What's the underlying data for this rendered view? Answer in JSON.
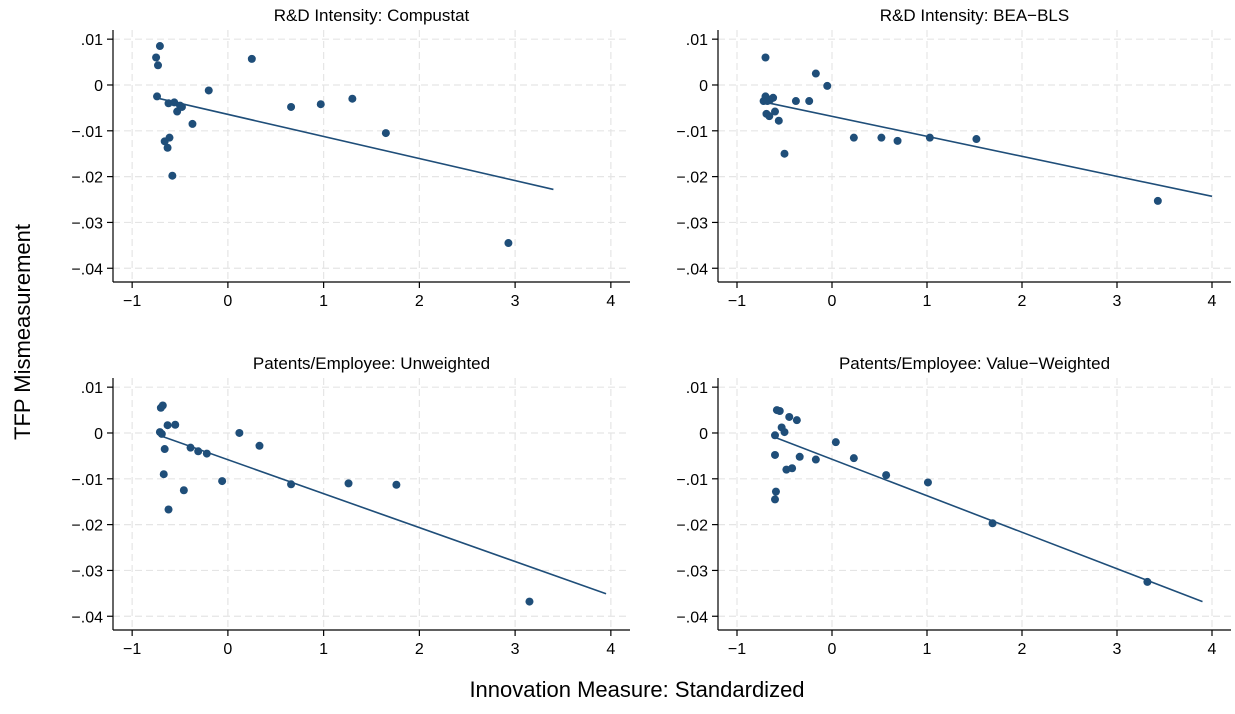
{
  "figure": {
    "ylabel": "TFP Mismeasurement",
    "xlabel": "Innovation Measure: Standardized"
  },
  "style": {
    "point_color": "#1f4e79",
    "line_color": "#1f4e79",
    "grid_color": "#e5e5e5",
    "axis_color": "#000000"
  },
  "chart_data": [
    {
      "type": "scatter",
      "title": "R&D Intensity: Compustat",
      "xlim": [
        -1.2,
        4.2
      ],
      "ylim": [
        -0.043,
        0.012
      ],
      "xticks": [
        -1,
        0,
        1,
        2,
        3,
        4
      ],
      "xtick_labels": [
        "−1",
        "0",
        "1",
        "2",
        "3",
        "4"
      ],
      "yticks": [
        0.01,
        0,
        -0.01,
        -0.02,
        -0.03,
        -0.04
      ],
      "ytick_labels": [
        ".01",
        "0",
        "−.01",
        "−.02",
        "−.03",
        "−.04"
      ],
      "grid": true,
      "points": [
        {
          "x": -0.75,
          "y": 0.006
        },
        {
          "x": -0.73,
          "y": 0.0043
        },
        {
          "x": -0.71,
          "y": 0.0085
        },
        {
          "x": -0.74,
          "y": -0.0025
        },
        {
          "x": -0.62,
          "y": -0.004
        },
        {
          "x": -0.56,
          "y": -0.0038
        },
        {
          "x": -0.53,
          "y": -0.0058
        },
        {
          "x": -0.5,
          "y": -0.0045
        },
        {
          "x": -0.48,
          "y": -0.0048
        },
        {
          "x": -0.37,
          "y": -0.0085
        },
        {
          "x": -0.2,
          "y": -0.0012
        },
        {
          "x": -0.66,
          "y": -0.0123
        },
        {
          "x": -0.61,
          "y": -0.0115
        },
        {
          "x": -0.63,
          "y": -0.0137
        },
        {
          "x": -0.58,
          "y": -0.0198
        },
        {
          "x": 0.25,
          "y": 0.0057
        },
        {
          "x": 0.66,
          "y": -0.0048
        },
        {
          "x": 0.97,
          "y": -0.0042
        },
        {
          "x": 1.3,
          "y": -0.003
        },
        {
          "x": 1.65,
          "y": -0.0105
        },
        {
          "x": 2.93,
          "y": -0.0345
        }
      ],
      "fit_line": {
        "x": [
          -0.75,
          3.4
        ],
        "y": [
          -0.0028,
          -0.0228
        ]
      }
    },
    {
      "type": "scatter",
      "title": "R&D Intensity: BEA−BLS",
      "xlim": [
        -1.2,
        4.2
      ],
      "ylim": [
        -0.043,
        0.012
      ],
      "xticks": [
        -1,
        0,
        1,
        2,
        3,
        4
      ],
      "xtick_labels": [
        "−1",
        "0",
        "1",
        "2",
        "3",
        "4"
      ],
      "yticks": [
        0.01,
        0,
        -0.01,
        -0.02,
        -0.03,
        -0.04
      ],
      "ytick_labels": [
        ".01",
        "0",
        "−.01",
        "−.02",
        "−.03",
        "−.04"
      ],
      "grid": true,
      "points": [
        {
          "x": -0.7,
          "y": 0.006
        },
        {
          "x": -0.72,
          "y": -0.0035
        },
        {
          "x": -0.7,
          "y": -0.0025
        },
        {
          "x": -0.68,
          "y": -0.0035
        },
        {
          "x": -0.65,
          "y": -0.0032
        },
        {
          "x": -0.62,
          "y": -0.0028
        },
        {
          "x": -0.69,
          "y": -0.0063
        },
        {
          "x": -0.66,
          "y": -0.0068
        },
        {
          "x": -0.6,
          "y": -0.0058
        },
        {
          "x": -0.56,
          "y": -0.0078
        },
        {
          "x": -0.5,
          "y": -0.015
        },
        {
          "x": -0.38,
          "y": -0.0035
        },
        {
          "x": -0.24,
          "y": -0.0035
        },
        {
          "x": -0.17,
          "y": 0.0025
        },
        {
          "x": -0.05,
          "y": -0.0002
        },
        {
          "x": 0.23,
          "y": -0.0115
        },
        {
          "x": 0.52,
          "y": -0.0115
        },
        {
          "x": 0.69,
          "y": -0.0122
        },
        {
          "x": 1.03,
          "y": -0.0115
        },
        {
          "x": 1.52,
          "y": -0.0118
        },
        {
          "x": 3.43,
          "y": -0.0253
        }
      ],
      "fit_line": {
        "x": [
          -0.72,
          4.0
        ],
        "y": [
          -0.0037,
          -0.0243
        ]
      }
    },
    {
      "type": "scatter",
      "title": "Patents/Employee: Unweighted",
      "xlim": [
        -1.2,
        4.2
      ],
      "ylim": [
        -0.043,
        0.012
      ],
      "xticks": [
        -1,
        0,
        1,
        2,
        3,
        4
      ],
      "xtick_labels": [
        "−1",
        "0",
        "1",
        "2",
        "3",
        "4"
      ],
      "yticks": [
        0.01,
        0,
        -0.01,
        -0.02,
        -0.03,
        -0.04
      ],
      "ytick_labels": [
        ".01",
        "0",
        "−.01",
        "−.02",
        "−.03",
        "−.04"
      ],
      "grid": true,
      "points": [
        {
          "x": -0.7,
          "y": 0.0055
        },
        {
          "x": -0.68,
          "y": 0.006
        },
        {
          "x": -0.71,
          "y": 0.0002
        },
        {
          "x": -0.69,
          "y": -0.0002
        },
        {
          "x": -0.63,
          "y": 0.0017
        },
        {
          "x": -0.55,
          "y": 0.0018
        },
        {
          "x": -0.66,
          "y": -0.0035
        },
        {
          "x": -0.67,
          "y": -0.009
        },
        {
          "x": -0.62,
          "y": -0.0167
        },
        {
          "x": -0.46,
          "y": -0.0125
        },
        {
          "x": -0.39,
          "y": -0.0032
        },
        {
          "x": -0.31,
          "y": -0.004
        },
        {
          "x": -0.22,
          "y": -0.0045
        },
        {
          "x": -0.06,
          "y": -0.0105
        },
        {
          "x": 0.12,
          "y": 0.0
        },
        {
          "x": 0.33,
          "y": -0.0028
        },
        {
          "x": 0.66,
          "y": -0.0112
        },
        {
          "x": 1.26,
          "y": -0.011
        },
        {
          "x": 1.76,
          "y": -0.0113
        },
        {
          "x": 3.15,
          "y": -0.0368
        }
      ],
      "fit_line": {
        "x": [
          -0.72,
          3.95
        ],
        "y": [
          -0.0005,
          -0.0351
        ]
      }
    },
    {
      "type": "scatter",
      "title": "Patents/Employee: Value−Weighted",
      "xlim": [
        -1.2,
        4.2
      ],
      "ylim": [
        -0.043,
        0.012
      ],
      "xticks": [
        -1,
        0,
        1,
        2,
        3,
        4
      ],
      "xtick_labels": [
        "−1",
        "0",
        "1",
        "2",
        "3",
        "4"
      ],
      "yticks": [
        0.01,
        0,
        -0.01,
        -0.02,
        -0.03,
        -0.04
      ],
      "ytick_labels": [
        ".01",
        "0",
        "−.01",
        "−.02",
        "−.03",
        "−.04"
      ],
      "grid": true,
      "points": [
        {
          "x": -0.58,
          "y": 0.005
        },
        {
          "x": -0.55,
          "y": 0.0048
        },
        {
          "x": -0.6,
          "y": -0.0005
        },
        {
          "x": -0.53,
          "y": 0.0012
        },
        {
          "x": -0.5,
          "y": 0.0002
        },
        {
          "x": -0.45,
          "y": 0.0035
        },
        {
          "x": -0.37,
          "y": 0.0028
        },
        {
          "x": -0.6,
          "y": -0.0048
        },
        {
          "x": -0.48,
          "y": -0.008
        },
        {
          "x": -0.42,
          "y": -0.0077
        },
        {
          "x": -0.34,
          "y": -0.0052
        },
        {
          "x": -0.17,
          "y": -0.0058
        },
        {
          "x": 0.04,
          "y": -0.002
        },
        {
          "x": 0.23,
          "y": -0.0055
        },
        {
          "x": -0.59,
          "y": -0.0128
        },
        {
          "x": -0.6,
          "y": -0.0145
        },
        {
          "x": 0.57,
          "y": -0.0092
        },
        {
          "x": 1.01,
          "y": -0.0108
        },
        {
          "x": 1.69,
          "y": -0.0197
        },
        {
          "x": 3.32,
          "y": -0.0325
        }
      ],
      "fit_line": {
        "x": [
          -0.62,
          3.9
        ],
        "y": [
          -0.0008,
          -0.0368
        ]
      }
    }
  ]
}
